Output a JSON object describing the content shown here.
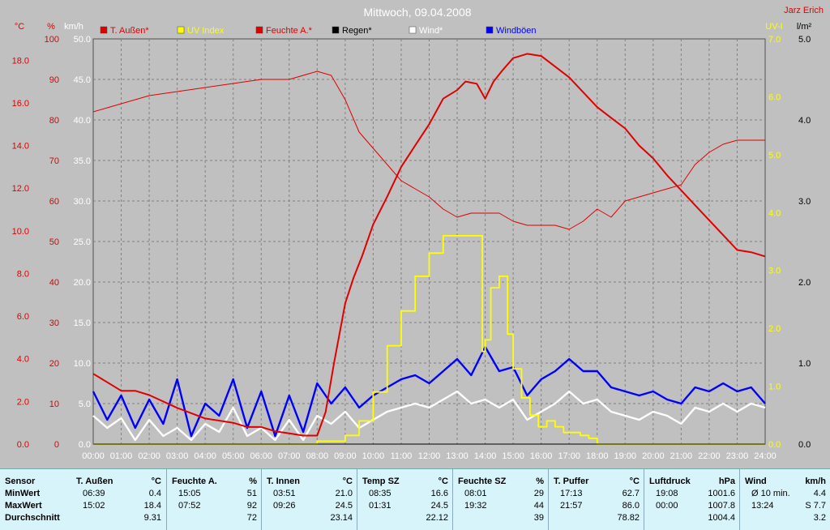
{
  "title": "Mittwoch, 09.04.2008",
  "author": "Jarz Erich",
  "colors": {
    "temp": "#e00000",
    "uv": "#ffff00",
    "humidity": "#e00000",
    "rain": "#000000",
    "wind": "#ffffff",
    "gust": "#0000ff",
    "bg": "#c0c0c0",
    "grid": "#808080"
  },
  "chart_data": {
    "type": "line",
    "x_ticks": [
      "00:00",
      "01:00",
      "02:00",
      "03:00",
      "04:00",
      "05:00",
      "06:00",
      "07:00",
      "08:00",
      "09:00",
      "10:00",
      "11:00",
      "12:00",
      "13:00",
      "14:00",
      "15:00",
      "16:00",
      "17:00",
      "18:00",
      "19:00",
      "20:00",
      "21:00",
      "22:00",
      "23:00",
      "24:00"
    ],
    "axes": {
      "temp_c": {
        "label": "°C",
        "ticks": [
          "0.0",
          "2.0",
          "4.0",
          "6.0",
          "8.0",
          "10.0",
          "12.0",
          "14.0",
          "16.0",
          "18.0"
        ],
        "range": [
          0,
          19
        ]
      },
      "percent": {
        "label": "%",
        "ticks": [
          "0",
          "10",
          "20",
          "30",
          "40",
          "50",
          "60",
          "70",
          "80",
          "90",
          "100"
        ],
        "range": [
          0,
          100
        ]
      },
      "wind_kmh": {
        "label": "km/h",
        "ticks": [
          "0.0",
          "5.0",
          "10.0",
          "15.0",
          "20.0",
          "25.0",
          "30.0",
          "35.0",
          "40.0",
          "45.0",
          "50.0"
        ],
        "range": [
          0,
          50
        ]
      },
      "uv": {
        "label": "UV-I",
        "ticks": [
          "0.0",
          "1.0",
          "2.0",
          "3.0",
          "4.0",
          "5.0",
          "6.0",
          "7.0"
        ],
        "range": [
          0,
          7
        ]
      },
      "rain": {
        "label": "l/m²",
        "ticks": [
          "0.0",
          "1.0",
          "2.0",
          "3.0",
          "4.0",
          "5.0"
        ],
        "range": [
          0,
          5
        ]
      }
    },
    "legend": [
      "T. Außen*",
      "UV Index",
      "Feuchte A.*",
      "Regen*",
      "Wind*",
      "Windböen"
    ],
    "series": [
      {
        "name": "T. Außen*",
        "axis": "temp_c",
        "x": [
          0,
          0.5,
          1,
          1.5,
          2,
          3,
          4,
          5,
          5.5,
          6,
          6.5,
          7,
          7.5,
          8,
          8.3,
          8.6,
          9,
          9.3,
          9.6,
          10,
          10.5,
          11,
          11.5,
          12,
          12.5,
          13,
          13.3,
          13.7,
          14,
          14.3,
          14.6,
          15,
          15.5,
          16,
          16.5,
          17,
          17.5,
          18,
          18.5,
          19,
          19.5,
          20,
          20.5,
          21,
          21.5,
          22,
          22.5,
          23,
          23.5,
          24
        ],
        "y": [
          3.3,
          2.9,
          2.5,
          2.5,
          2.3,
          1.7,
          1.2,
          1.0,
          0.8,
          0.8,
          0.6,
          0.5,
          0.4,
          0.4,
          1.5,
          3.8,
          6.6,
          7.8,
          8.8,
          10.3,
          11.6,
          13.0,
          14.0,
          15.0,
          16.2,
          16.6,
          17.0,
          16.9,
          16.2,
          17.0,
          17.5,
          18.1,
          18.3,
          18.2,
          17.7,
          17.2,
          16.5,
          15.8,
          15.3,
          14.8,
          14.0,
          13.4,
          12.6,
          11.9,
          11.2,
          10.5,
          9.8,
          9.1,
          9.0,
          8.8
        ],
        "min": "0.4",
        "max": "18.4"
      },
      {
        "name": "Feuchte A.*",
        "axis": "percent",
        "x": [
          0,
          0.5,
          1,
          1.5,
          2,
          3,
          4,
          5,
          6,
          7,
          7.5,
          8,
          8.5,
          9,
          9.5,
          10,
          10.5,
          11,
          11.5,
          12,
          12.5,
          13,
          13.5,
          14,
          14.5,
          15,
          15.5,
          16,
          16.5,
          17,
          17.5,
          18,
          18.5,
          19,
          20,
          21,
          21.5,
          22,
          22.5,
          23,
          23.5,
          24
        ],
        "y": [
          82,
          83,
          84,
          85,
          86,
          87,
          88,
          89,
          90,
          90,
          91,
          92,
          91,
          85,
          77,
          73,
          69,
          65,
          63,
          61,
          58,
          56,
          57,
          57,
          57,
          55,
          54,
          54,
          54,
          53,
          55,
          58,
          56,
          60,
          62,
          64,
          69,
          72,
          74,
          75,
          75,
          75
        ],
        "min": "51",
        "max": "92"
      },
      {
        "name": "UV Index",
        "axis": "uv",
        "x": [
          0,
          8,
          9,
          9.5,
          10,
          10.5,
          11,
          11.5,
          12,
          12.5,
          13,
          13.5,
          13.9,
          14.0,
          14.2,
          14.5,
          14.8,
          15.0,
          15.3,
          15.6,
          15.9,
          16.2,
          16.5,
          16.8,
          17.1,
          17.4,
          17.7,
          18.0,
          24
        ],
        "y": [
          0,
          0.05,
          0.15,
          0.4,
          0.9,
          1.7,
          2.3,
          2.9,
          3.3,
          3.6,
          3.6,
          3.6,
          1.6,
          1.8,
          2.7,
          2.9,
          1.9,
          1.3,
          0.8,
          0.5,
          0.3,
          0.4,
          0.3,
          0.2,
          0.2,
          0.15,
          0.1,
          0,
          0
        ]
      },
      {
        "name": "Wind*",
        "axis": "wind_kmh",
        "x": [
          0,
          0.5,
          1,
          1.5,
          2,
          2.5,
          3,
          3.5,
          4,
          4.5,
          5,
          5.5,
          6,
          6.5,
          7,
          7.5,
          8,
          8.5,
          9,
          9.5,
          10,
          10.5,
          11,
          11.5,
          12,
          12.5,
          13,
          13.5,
          14,
          14.5,
          15,
          15.5,
          16,
          16.5,
          17,
          17.5,
          18,
          18.5,
          19,
          19.5,
          20,
          20.5,
          21,
          21.5,
          22,
          22.5,
          23,
          23.5,
          24
        ],
        "y": [
          3.5,
          2.0,
          3.2,
          0.5,
          3.0,
          1.0,
          2.0,
          0.5,
          2.5,
          1.5,
          4.5,
          1.0,
          2.0,
          0.5,
          3.0,
          0.5,
          3.5,
          2.5,
          4.0,
          2.0,
          3.0,
          4.0,
          4.5,
          5.0,
          4.5,
          5.5,
          6.5,
          5.0,
          5.5,
          4.5,
          5.5,
          3.0,
          4.0,
          5.0,
          6.5,
          5.0,
          5.5,
          4.0,
          3.5,
          3.0,
          4.0,
          3.5,
          2.5,
          4.5,
          4.0,
          5.0,
          4.0,
          5.0,
          4.5
        ]
      },
      {
        "name": "Windböen",
        "axis": "wind_kmh",
        "x": [
          0,
          0.5,
          1,
          1.5,
          2,
          2.5,
          3,
          3.5,
          4,
          4.5,
          5,
          5.5,
          6,
          6.5,
          7,
          7.5,
          8,
          8.5,
          9,
          9.5,
          10,
          10.5,
          11,
          11.5,
          12,
          12.5,
          13,
          13.5,
          14,
          14.5,
          15,
          15.5,
          16,
          16.5,
          17,
          17.5,
          18,
          18.5,
          19,
          19.5,
          20,
          20.5,
          21,
          21.5,
          22,
          22.5,
          23,
          23.5,
          24
        ],
        "y": [
          6.5,
          3.0,
          6.0,
          2.0,
          5.5,
          2.5,
          8.0,
          1.0,
          5.0,
          3.5,
          8.0,
          2.0,
          6.5,
          1.0,
          6.0,
          1.5,
          7.5,
          5.0,
          7.0,
          4.5,
          6.0,
          7.0,
          8.0,
          8.5,
          7.5,
          9.0,
          10.5,
          8.5,
          12.0,
          9.0,
          9.5,
          6.0,
          8.0,
          9.0,
          10.5,
          9.0,
          9.0,
          7.0,
          6.5,
          6.0,
          6.5,
          5.5,
          5.0,
          7.0,
          6.5,
          7.5,
          6.5,
          7.0,
          5.0
        ]
      },
      {
        "name": "Regen*",
        "axis": "rain",
        "x": [
          0,
          24
        ],
        "y": [
          0,
          0
        ]
      }
    ]
  },
  "stats": {
    "row_labels": [
      "Sensor",
      "MinWert",
      "MaxWert",
      "Durchschnitt"
    ],
    "columns": [
      {
        "name": "T. Außen",
        "unit": "°C",
        "min_time": "06:39",
        "min": "0.4",
        "max_time": "15:02",
        "max": "18.4",
        "avg": "9.31"
      },
      {
        "name": "Feuchte A.",
        "unit": "%",
        "min_time": "15:05",
        "min": "51",
        "max_time": "07:52",
        "max": "92",
        "avg": "72"
      },
      {
        "name": "T. Innen",
        "unit": "°C",
        "min_time": "03:51",
        "min": "21.0",
        "max_time": "09:26",
        "max": "24.5",
        "avg": "23.14"
      },
      {
        "name": "Temp SZ",
        "unit": "°C",
        "min_time": "08:35",
        "min": "16.6",
        "max_time": "01:31",
        "max": "24.5",
        "avg": "22.12"
      },
      {
        "name": "Feuchte SZ",
        "unit": "%",
        "min_time": "08:01",
        "min": "29",
        "max_time": "19:32",
        "max": "44",
        "avg": "39"
      },
      {
        "name": "T. Puffer",
        "unit": "°C",
        "min_time": "17:13",
        "min": "62.7",
        "max_time": "21:57",
        "max": "86.0",
        "avg": "78.82"
      },
      {
        "name": "Luftdruck",
        "unit": "hPa",
        "min_time": "19:08",
        "min": "1001.6",
        "max_time": "00:00",
        "max": "1007.8",
        "avg": "1004.4"
      },
      {
        "name": "Wind",
        "unit": "km/h",
        "min_time": "Ø 10 min.",
        "min": "4.4",
        "max_time": "13:24",
        "max": "S 7.7",
        "avg": "3.2"
      }
    ]
  }
}
